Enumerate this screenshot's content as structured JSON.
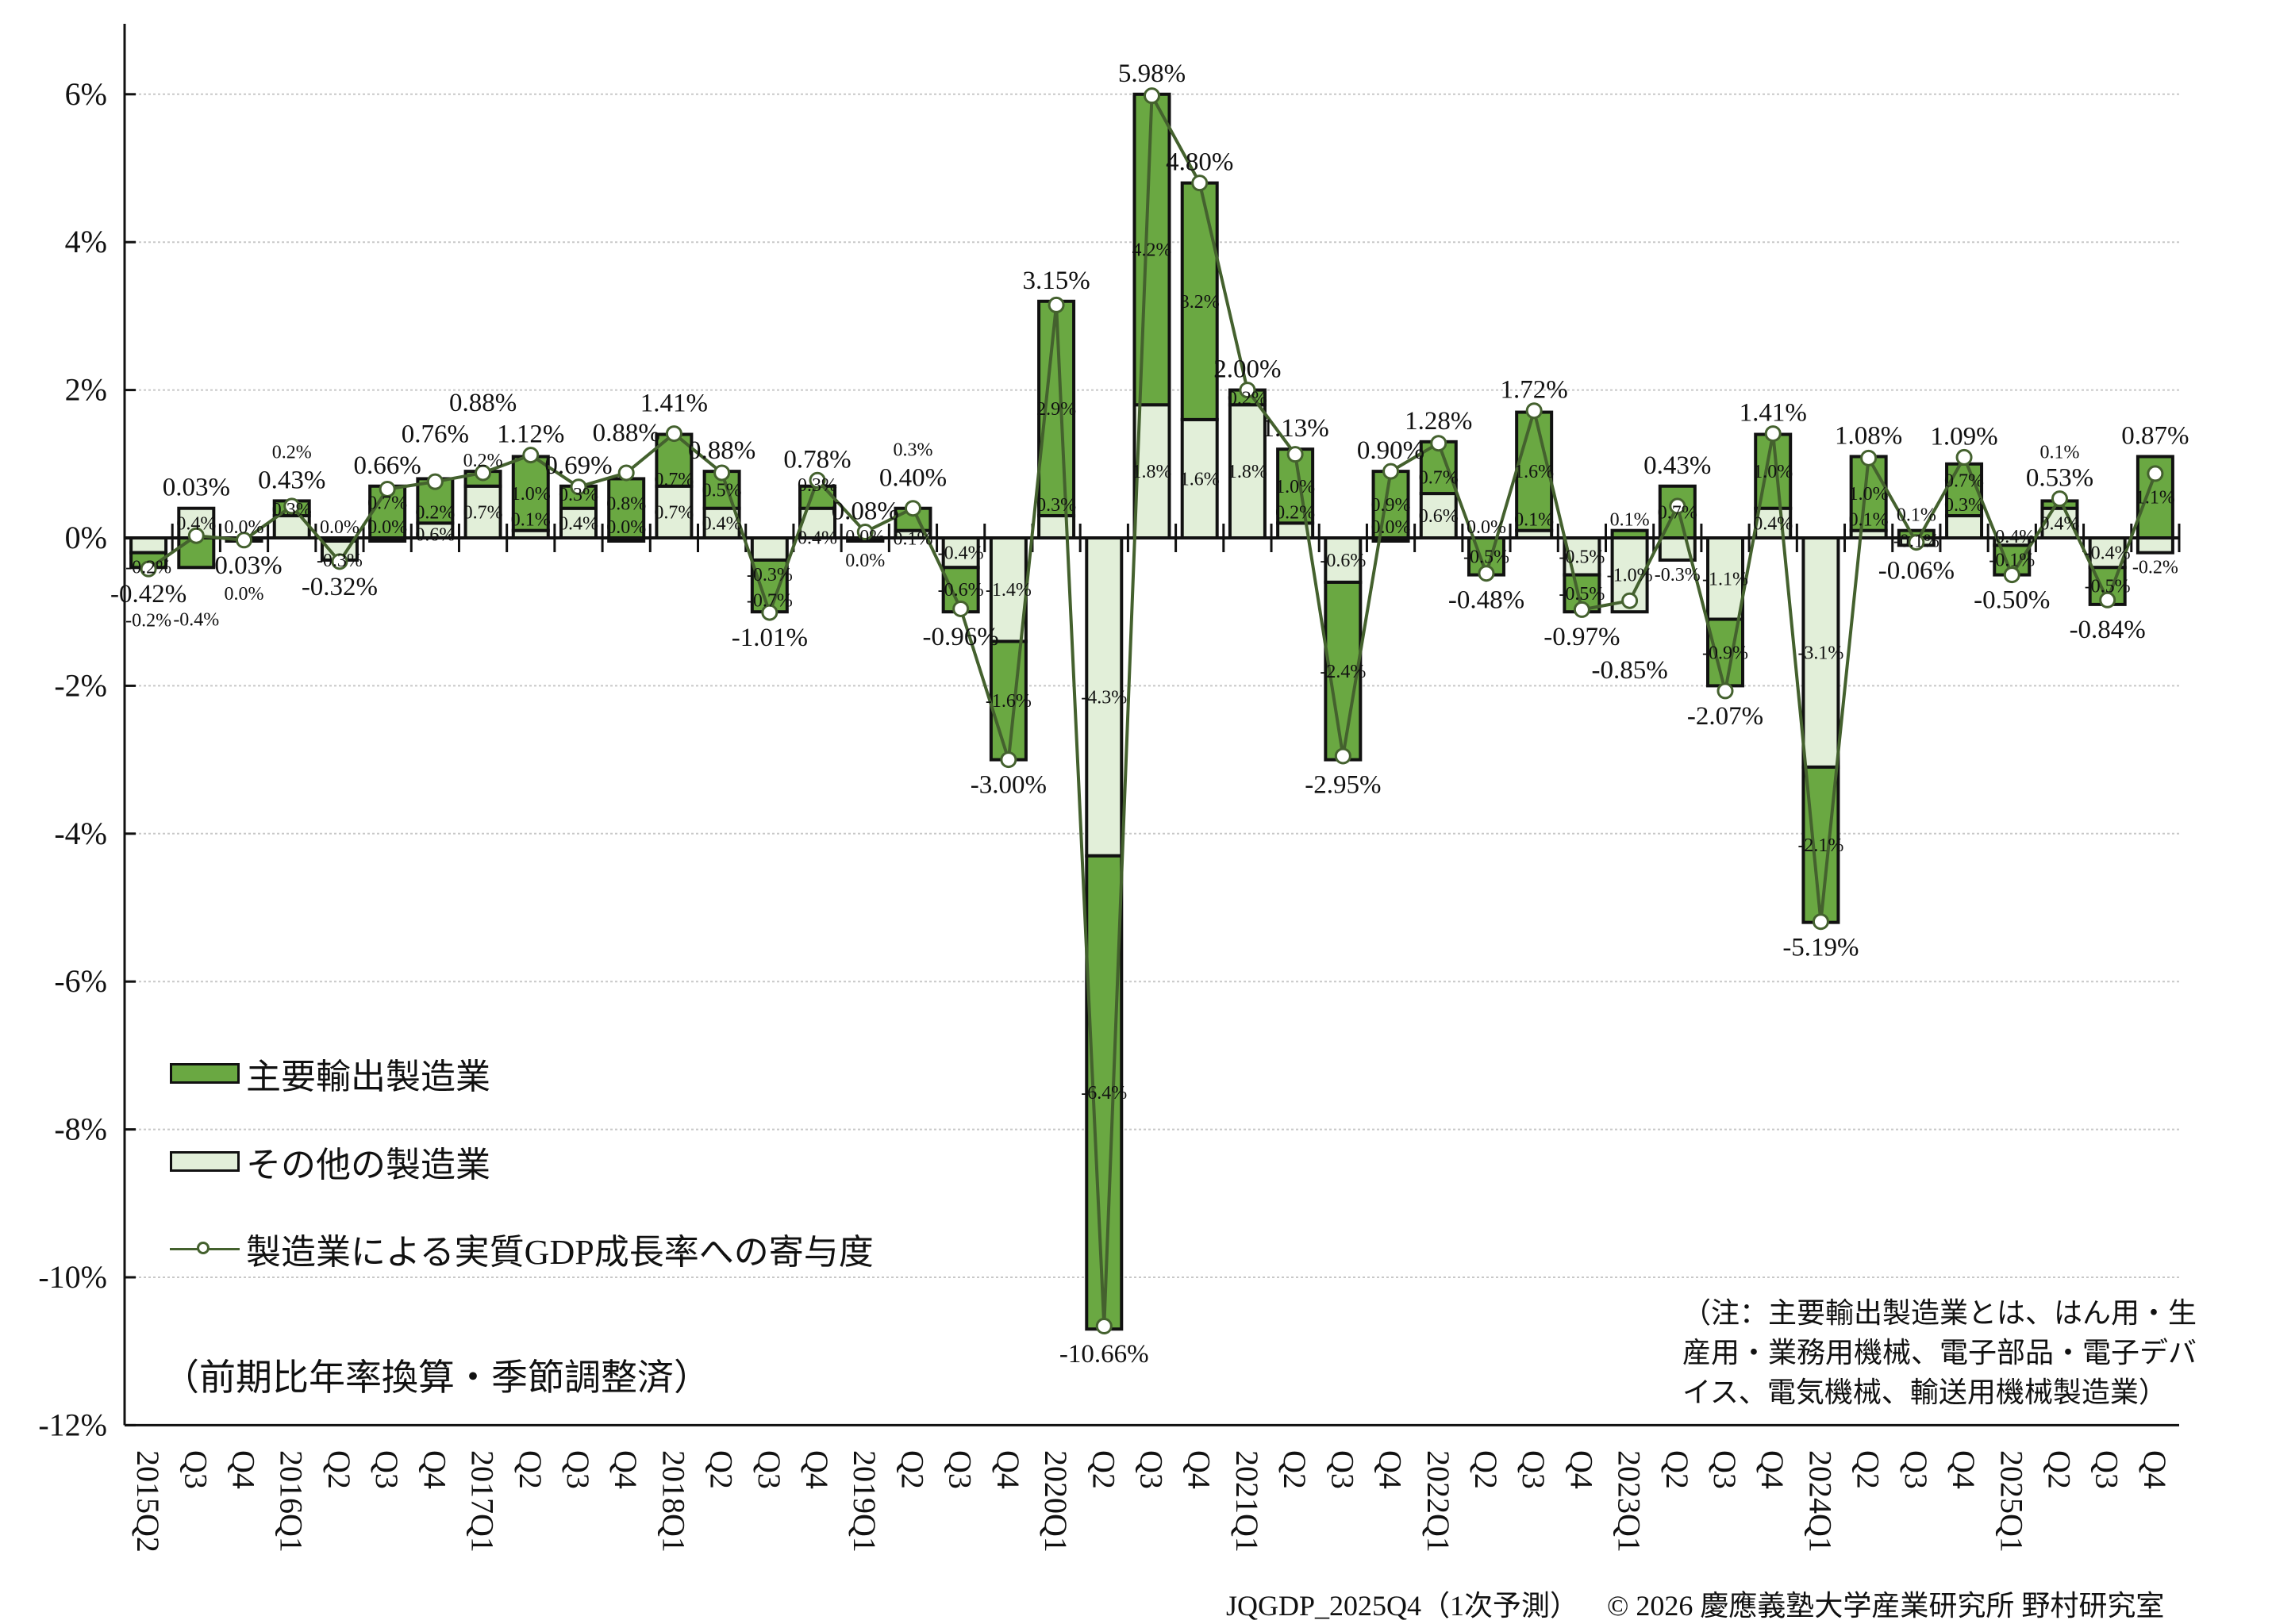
{
  "chart_data": {
    "type": "bar",
    "subtype": "stacked bar with line",
    "categories": [
      "2015Q2",
      "Q3",
      "Q4",
      "2016Q1",
      "Q2",
      "Q3",
      "Q4",
      "2017Q1",
      "Q2",
      "Q3",
      "Q4",
      "2018Q1",
      "Q2",
      "Q3",
      "Q4",
      "2019Q1",
      "Q2",
      "Q3",
      "Q4",
      "2020Q1",
      "Q2",
      "Q3",
      "Q4",
      "2021Q1",
      "Q2",
      "Q3",
      "Q4",
      "2022Q1",
      "Q2",
      "Q3",
      "Q4",
      "2023Q1",
      "Q2",
      "Q3",
      "Q4",
      "2024Q1",
      "Q2",
      "Q3",
      "Q4",
      "2025Q1",
      "Q2",
      "Q3",
      "Q4"
    ],
    "series": [
      {
        "name": "主要輸出製造業",
        "kind": "bar",
        "color": "#6aa842",
        "values": [
          -0.2,
          -0.4,
          0.0,
          0.2,
          0.0,
          0.7,
          0.6,
          0.2,
          1.0,
          0.3,
          0.8,
          0.7,
          0.5,
          -0.7,
          0.3,
          0.0,
          0.3,
          -0.6,
          -1.6,
          2.9,
          -6.4,
          4.2,
          3.2,
          0.2,
          1.0,
          -2.4,
          0.9,
          0.7,
          -0.5,
          1.6,
          -0.5,
          0.1,
          0.7,
          -0.9,
          1.0,
          -2.1,
          1.0,
          0.1,
          0.7,
          -0.4,
          0.1,
          -0.5,
          1.1
        ]
      },
      {
        "name": "その他の製造業",
        "kind": "bar",
        "color": "#e2efd9",
        "values": [
          -0.2,
          0.4,
          0.0,
          0.3,
          -0.3,
          0.0,
          0.2,
          0.7,
          0.1,
          0.4,
          0.0,
          0.7,
          0.4,
          -0.3,
          0.4,
          0.0,
          0.1,
          -0.4,
          -1.4,
          0.3,
          -4.3,
          1.8,
          1.6,
          1.8,
          0.2,
          -0.6,
          0.0,
          0.6,
          0.0,
          0.1,
          -0.5,
          -1.0,
          -0.3,
          -1.1,
          0.4,
          -3.1,
          0.1,
          -0.1,
          0.3,
          -0.1,
          0.4,
          -0.4,
          -0.2
        ]
      },
      {
        "name": "製造業による実質GDP成長率への寄与度",
        "kind": "line",
        "color": "#44612e",
        "values": [
          -0.42,
          0.03,
          -0.03,
          0.43,
          -0.32,
          0.66,
          0.76,
          0.88,
          1.12,
          0.69,
          0.88,
          1.41,
          0.88,
          -1.01,
          0.78,
          0.08,
          0.4,
          -0.96,
          -3.0,
          3.15,
          -10.66,
          5.98,
          4.8,
          2.0,
          1.13,
          -2.95,
          0.9,
          1.28,
          -0.48,
          1.72,
          -0.97,
          -0.85,
          0.43,
          -2.07,
          1.41,
          -5.19,
          1.08,
          -0.06,
          1.09,
          -0.5,
          0.53,
          -0.84,
          0.87
        ]
      }
    ],
    "yticks": [
      "6%",
      "4%",
      "2%",
      "0%",
      "-2%",
      "-4%",
      "-6%",
      "-8%",
      "-10%",
      "-12%"
    ],
    "ylim": [
      -12,
      7
    ],
    "grid": true,
    "legend_placement": "bottom-left",
    "xlabel": "",
    "ylabel": "",
    "title": ""
  },
  "legend": {
    "main_export": "主要輸出製造業",
    "other": "その他の製造業",
    "contribution": "製造業による実質GDP成長率への寄与度"
  },
  "notes": {
    "basis": "（前期比年率換算・季節調整済）",
    "definition": "（注：主要輸出製造業とは、はん用・生産用・業務用機械、電子部品・電子デバイス、電気機械、輸送用機械製造業）"
  },
  "footer": {
    "source": "JQGDP_2025Q4（1次予測）",
    "copyright": "© 2026 慶應義塾大学産業研究所 野村研究室"
  }
}
